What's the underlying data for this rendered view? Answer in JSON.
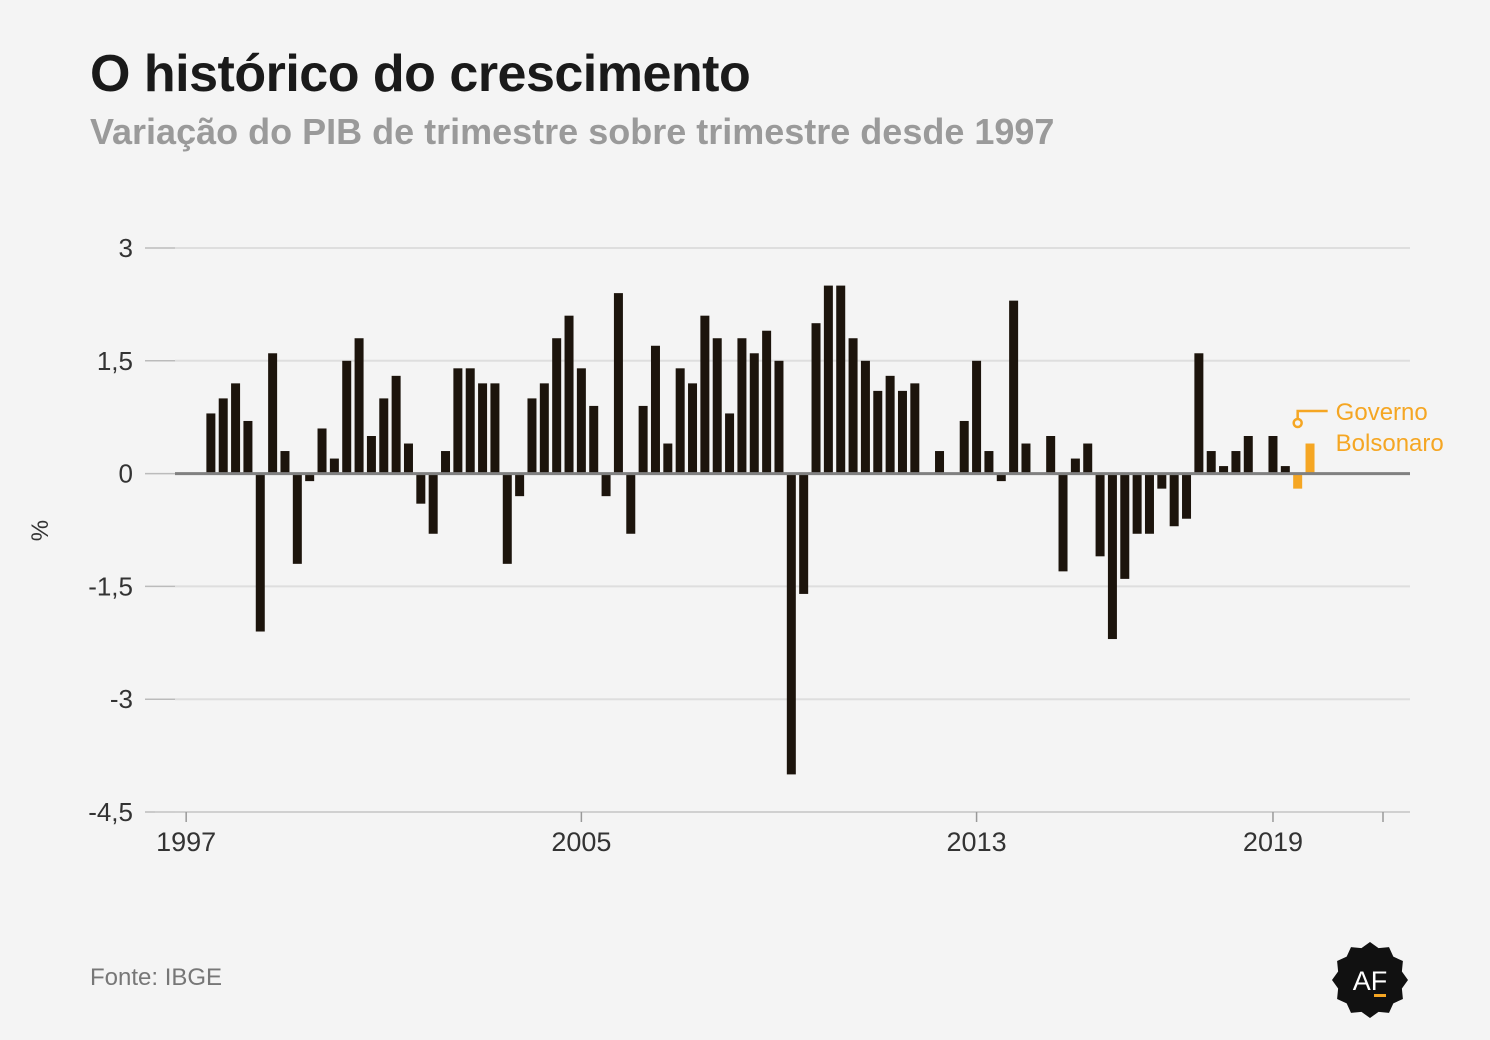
{
  "header": {
    "title": "O histórico do crescimento",
    "subtitle": "Variação do PIB de trimestre sobre trimestre desde 1997"
  },
  "footer": {
    "source": "Fonte: IBGE",
    "logo_text": "AF"
  },
  "colors": {
    "background": "#f4f4f4",
    "bar": "#1c140c",
    "highlight": "#f5a623",
    "grid": "#dedede",
    "zero_line": "#808080",
    "tick_text": "#333333"
  },
  "chart_data": {
    "type": "bar",
    "ylabel": "%",
    "ylim": [
      -4.5,
      3
    ],
    "yticks": [
      3,
      1.5,
      0,
      -1.5,
      -3,
      -4.5
    ],
    "ytick_labels": [
      "3",
      "1,5",
      "0",
      "-1,5",
      "-3",
      "-4,5"
    ],
    "x_labels": [
      "1997",
      "2005",
      "2013",
      "2019"
    ],
    "x_start": "1997-Q1",
    "values": [
      0,
      0,
      0.8,
      1.0,
      1.2,
      0.7,
      -2.1,
      1.6,
      0.3,
      -1.2,
      -0.1,
      0.6,
      0.2,
      1.5,
      1.8,
      0.5,
      1.0,
      1.3,
      0.4,
      -0.4,
      -0.8,
      0.3,
      1.4,
      1.4,
      1.2,
      1.2,
      -1.2,
      -0.3,
      1.0,
      1.2,
      1.8,
      2.1,
      1.4,
      0.9,
      -0.3,
      2.4,
      -0.8,
      0.9,
      1.7,
      0.4,
      1.4,
      1.2,
      2.1,
      1.8,
      0.8,
      1.8,
      1.6,
      1.9,
      1.5,
      -4.0,
      -1.6,
      2.0,
      2.5,
      2.5,
      1.8,
      1.5,
      1.1,
      1.3,
      1.1,
      1.2,
      0,
      0.3,
      0,
      0.7,
      1.5,
      0.3,
      -0.1,
      2.3,
      0.4,
      0,
      0.5,
      -1.3,
      0.2,
      0.4,
      -1.1,
      -2.2,
      -1.4,
      -0.8,
      -0.8,
      -0.2,
      -0.7,
      -0.6,
      1.6,
      0.3,
      0.1,
      0.3,
      0.5,
      0,
      0.5,
      0.1,
      -0.2,
      0.4
    ],
    "highlight_from_index": 90,
    "annotation": {
      "lines": [
        "Governo",
        "Bolsonaro"
      ]
    }
  }
}
